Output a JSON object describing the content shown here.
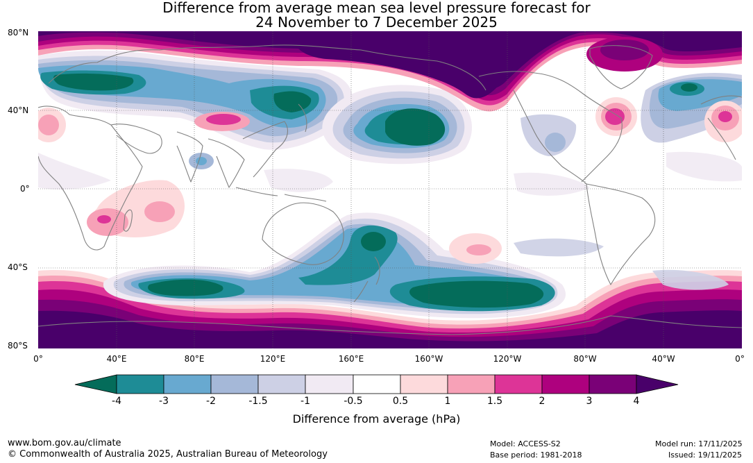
{
  "title_line1": "Difference from average mean sea level pressure forecast for",
  "title_line2": "24 November to 7 December 2025",
  "lat_labels": [
    "80°N",
    "40°N",
    "0°",
    "40°S",
    "80°S"
  ],
  "lon_labels": [
    "0°",
    "40°E",
    "80°E",
    "120°E",
    "160°E",
    "160°W",
    "120°W",
    "80°W",
    "40°W",
    "0°"
  ],
  "colorbar": {
    "label": "Difference from average (hPa)",
    "ticks": [
      "-4",
      "-3",
      "-2",
      "-1.5",
      "-1",
      "-0.5",
      "0.5",
      "1",
      "1.5",
      "2",
      "3",
      "4"
    ],
    "colors": [
      "#046c5a",
      "#1e8c96",
      "#68a9d0",
      "#a5b8d8",
      "#cdd0e5",
      "#f1eaf3",
      "#ffffff",
      "#fddadc",
      "#f7a1b7",
      "#dd3497",
      "#ae017e",
      "#7a0177",
      "#49006a"
    ]
  },
  "footer": {
    "website": "www.bom.gov.au/climate",
    "copyright": "© Commonwealth of Australia 2025, Australian Bureau of Meteorology",
    "model": "Model: ACCESS-S2",
    "base_period": "Base period: 1981-2018",
    "model_run": "Model run: 17/11/2025",
    "issued": "Issued: 19/11/2025"
  }
}
